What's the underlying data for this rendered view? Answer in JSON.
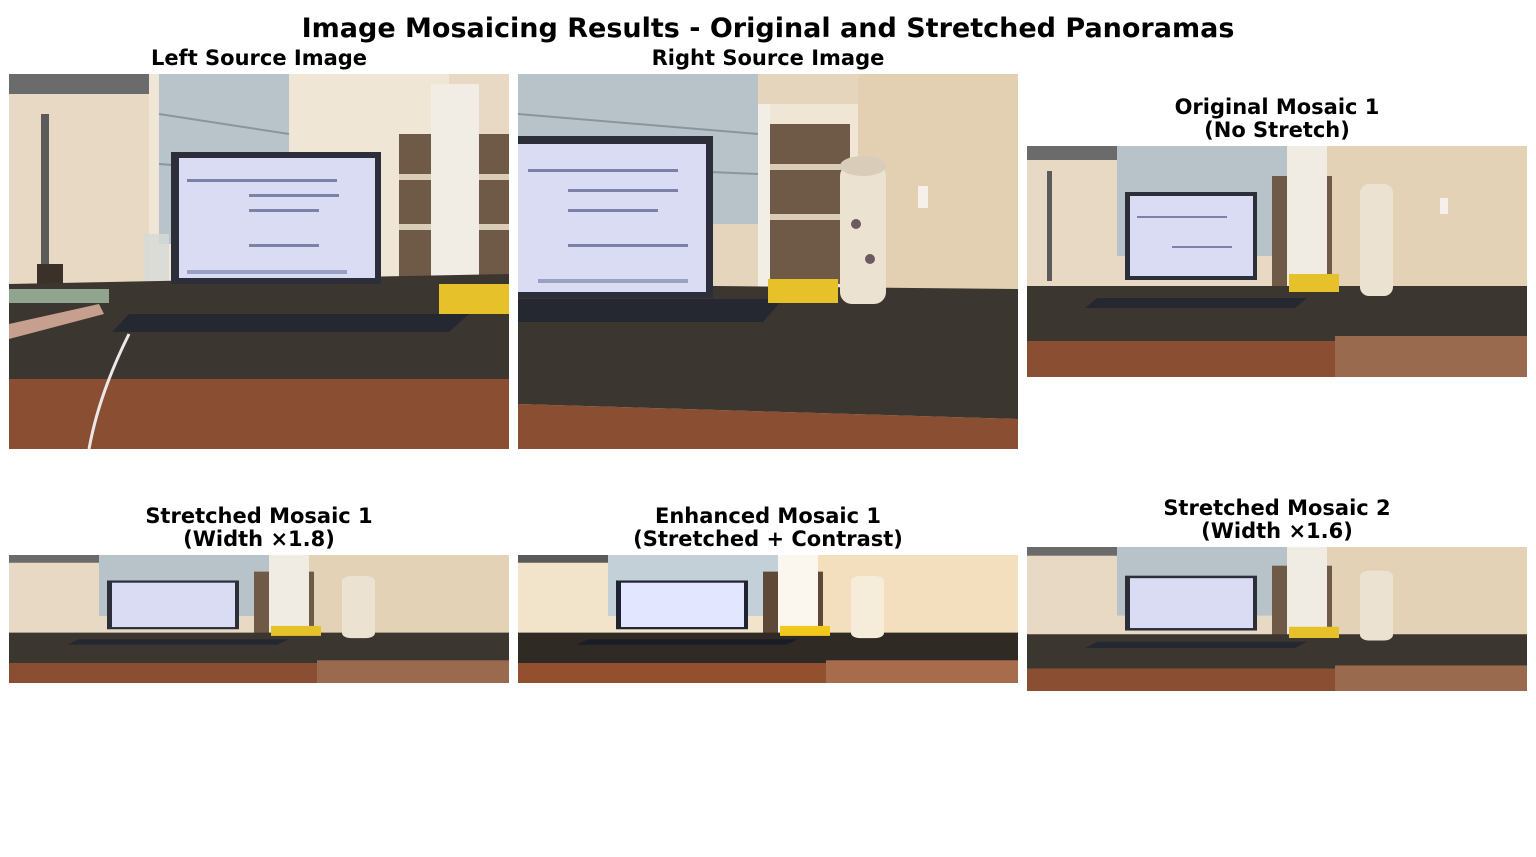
{
  "figure": {
    "title": "Image Mosaicing Results - Original and Stretched Panoramas"
  },
  "panels": [
    {
      "title": "Left Source Image"
    },
    {
      "title": "Right Source Image"
    },
    {
      "title": "Original Mosaic 1\n(No Stretch)"
    },
    {
      "title": "Stretched Mosaic 1\n(Width ×1.8)"
    },
    {
      "title": "Enhanced Mosaic 1\n(Stretched + Contrast)"
    },
    {
      "title": "Stretched Mosaic 2\n(Width ×1.6)"
    }
  ],
  "colors": {
    "wall": "#e9dcc6",
    "desk_dark": "#3b3630",
    "desk_edge": "#8a4f33",
    "laptop_body": "#2c2f3a",
    "screen": "#d9dcf3",
    "bookshelf": "#6f5a48",
    "shelf_panel": "#ede6db",
    "window": "#b7c2c9",
    "bottle": "#ebe2d2",
    "toy_yellow": "#e6c12a"
  }
}
